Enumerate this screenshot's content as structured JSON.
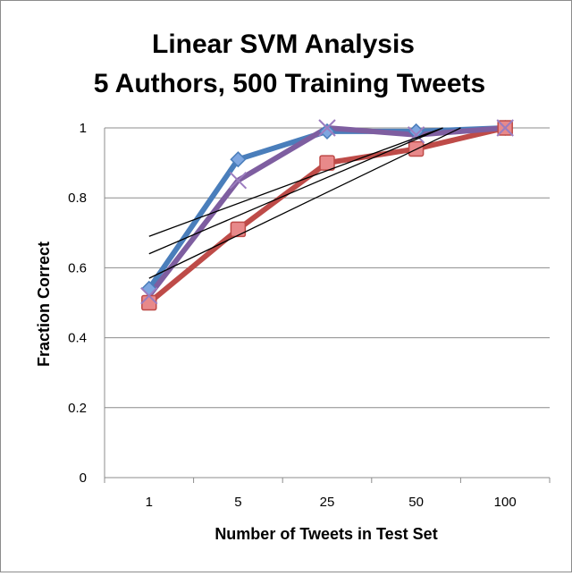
{
  "chart_data": {
    "type": "line",
    "title": [
      "Linear SVM Analysis",
      "5 Authors, 500 Training Tweets"
    ],
    "xlabel": "Number of Tweets in Test Set",
    "ylabel": "Fraction Correct",
    "categories": [
      "1",
      "5",
      "25",
      "50",
      "100"
    ],
    "ylim": [
      0,
      1
    ],
    "yticks": [
      0,
      0.2,
      0.4,
      0.6,
      0.8,
      1
    ],
    "ytick_labels": [
      "0",
      "0.2",
      "0.4",
      "0.6",
      "0.8",
      "1"
    ],
    "grid": "horizontal",
    "legend": "none",
    "series": [
      {
        "values": [
          0.54,
          0.91,
          0.99,
          0.99,
          1.0
        ],
        "color": "#4a7ebb",
        "marker": "diamond",
        "marker_fill": "#7ea6e0"
      },
      {
        "values": [
          0.5,
          0.71,
          0.9,
          0.94,
          1.0
        ],
        "color": "#be4b48",
        "marker": "square",
        "marker_fill": "#e8898a"
      },
      {
        "values": [
          0.52,
          0.85,
          1.0,
          0.98,
          1.0
        ],
        "color": "#7e5ea0",
        "marker": "x",
        "marker_fill": "#9b7cbf"
      }
    ],
    "trendlines": [
      {
        "color": "#000000",
        "values": [
          0.69,
          1.0
        ],
        "x_range": [
          1,
          4.3
        ]
      },
      {
        "color": "#000000",
        "values": [
          0.64,
          1.0
        ],
        "x_range": [
          1,
          4.3
        ]
      },
      {
        "color": "#000000",
        "values": [
          0.57,
          1.0
        ],
        "x_range": [
          1,
          4.5
        ]
      }
    ]
  }
}
